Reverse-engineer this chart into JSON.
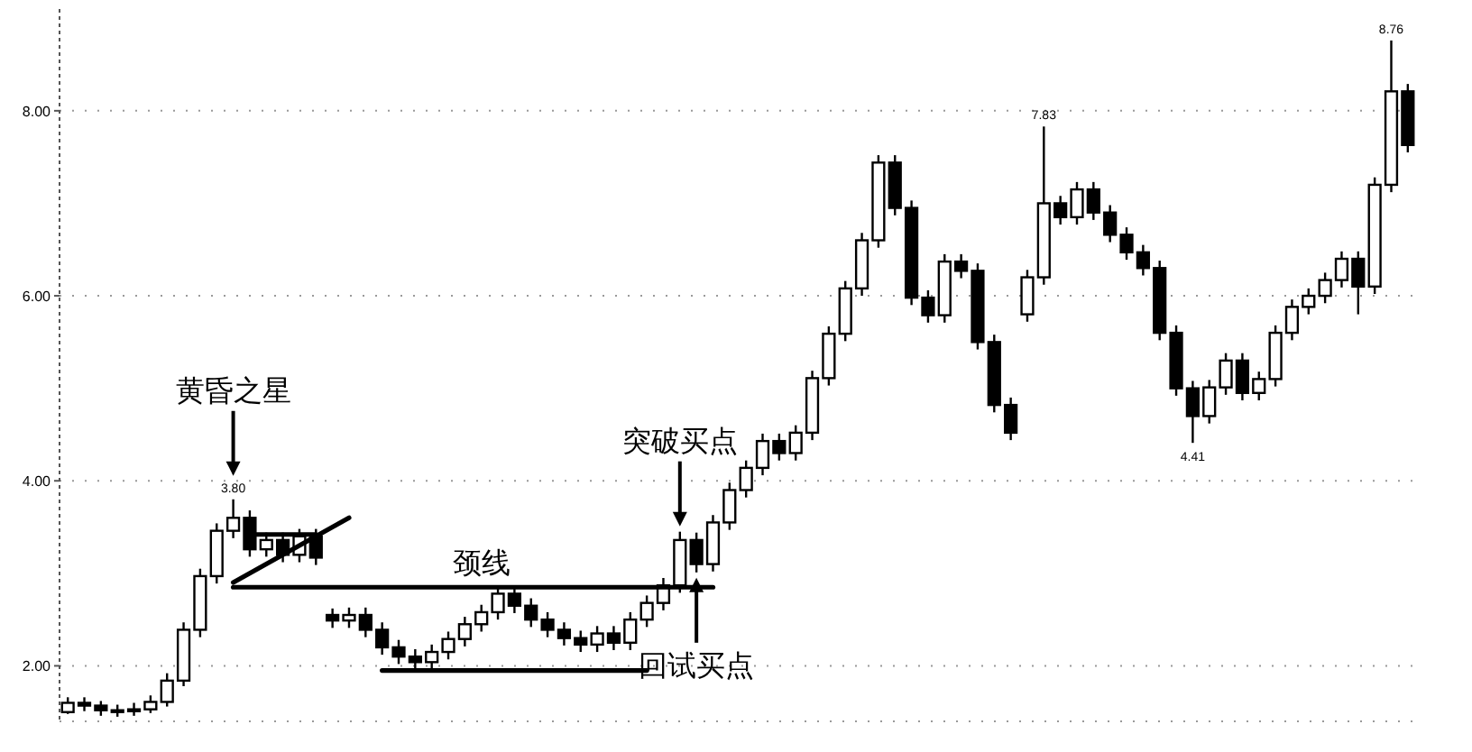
{
  "chart_data": {
    "type": "candlestick",
    "categories": [
      null,
      null,
      null,
      null,
      null,
      null,
      null,
      null,
      null,
      null,
      null,
      null,
      null,
      null,
      null,
      null,
      null,
      null,
      null,
      null,
      null,
      null,
      null,
      null,
      null,
      null,
      null,
      null,
      null,
      null,
      null,
      null,
      null,
      null,
      null,
      null,
      null,
      null,
      null,
      null,
      null,
      null,
      null,
      null,
      null,
      null,
      null,
      null,
      null,
      null,
      null,
      null,
      null,
      null,
      null,
      null,
      null,
      null,
      null,
      null,
      null,
      null,
      null,
      null,
      null,
      null,
      null,
      null,
      null,
      null,
      null,
      null,
      null,
      null,
      null,
      null,
      null,
      null,
      null,
      null,
      null,
      null
    ],
    "ohlc": [
      [
        1.5,
        1.66,
        1.48,
        1.6
      ],
      [
        1.6,
        1.66,
        1.51,
        1.57
      ],
      [
        1.57,
        1.62,
        1.46,
        1.52
      ],
      [
        1.52,
        1.58,
        1.45,
        1.51
      ],
      [
        1.51,
        1.6,
        1.46,
        1.53
      ],
      [
        1.53,
        1.68,
        1.49,
        1.61
      ],
      [
        1.61,
        1.92,
        1.56,
        1.84
      ],
      [
        1.84,
        2.47,
        1.78,
        2.39
      ],
      [
        2.39,
        3.05,
        2.31,
        2.97
      ],
      [
        2.97,
        3.54,
        2.89,
        3.46
      ],
      [
        3.46,
        3.8,
        3.38,
        3.6
      ],
      [
        3.6,
        3.68,
        3.18,
        3.26
      ],
      [
        3.26,
        3.44,
        3.18,
        3.36
      ],
      [
        3.36,
        3.44,
        3.12,
        3.2
      ],
      [
        3.2,
        3.48,
        3.12,
        3.4
      ],
      [
        3.4,
        3.48,
        3.09,
        3.17
      ],
      [
        2.55,
        2.62,
        2.41,
        2.49
      ],
      [
        2.49,
        2.63,
        2.41,
        2.55
      ],
      [
        2.55,
        2.63,
        2.31,
        2.39
      ],
      [
        2.39,
        2.47,
        2.12,
        2.2
      ],
      [
        2.2,
        2.28,
        2.02,
        2.1
      ],
      [
        2.1,
        2.18,
        1.96,
        2.04
      ],
      [
        2.04,
        2.23,
        1.96,
        2.15
      ],
      [
        2.15,
        2.37,
        2.07,
        2.29
      ],
      [
        2.29,
        2.53,
        2.21,
        2.45
      ],
      [
        2.45,
        2.66,
        2.37,
        2.58
      ],
      [
        2.58,
        2.86,
        2.5,
        2.78
      ],
      [
        2.78,
        2.86,
        2.57,
        2.65
      ],
      [
        2.65,
        2.73,
        2.42,
        2.5
      ],
      [
        2.5,
        2.58,
        2.31,
        2.39
      ],
      [
        2.39,
        2.47,
        2.22,
        2.3
      ],
      [
        2.3,
        2.38,
        2.15,
        2.23
      ],
      [
        2.23,
        2.43,
        2.15,
        2.35
      ],
      [
        2.35,
        2.43,
        2.17,
        2.25
      ],
      [
        2.25,
        2.58,
        2.17,
        2.5
      ],
      [
        2.5,
        2.76,
        2.42,
        2.68
      ],
      [
        2.68,
        2.95,
        2.6,
        2.87
      ],
      [
        2.87,
        3.45,
        2.79,
        3.36
      ],
      [
        3.36,
        3.44,
        3.01,
        3.1
      ],
      [
        3.1,
        3.63,
        3.02,
        3.55
      ],
      [
        3.55,
        3.98,
        3.47,
        3.9
      ],
      [
        3.9,
        4.22,
        3.82,
        4.14
      ],
      [
        4.14,
        4.51,
        4.06,
        4.43
      ],
      [
        4.43,
        4.51,
        4.22,
        4.3
      ],
      [
        4.3,
        4.6,
        4.22,
        4.52
      ],
      [
        4.52,
        5.19,
        4.44,
        5.11
      ],
      [
        5.11,
        5.67,
        5.03,
        5.59
      ],
      [
        5.59,
        6.16,
        5.51,
        6.08
      ],
      [
        6.08,
        6.68,
        6.0,
        6.6
      ],
      [
        6.6,
        7.52,
        6.52,
        7.44
      ],
      [
        7.44,
        7.52,
        6.87,
        6.95
      ],
      [
        6.95,
        7.03,
        5.9,
        5.98
      ],
      [
        5.98,
        6.06,
        5.71,
        5.79
      ],
      [
        5.79,
        6.45,
        5.71,
        6.37
      ],
      [
        6.37,
        6.45,
        6.19,
        6.27
      ],
      [
        6.27,
        6.35,
        5.42,
        5.5
      ],
      [
        5.5,
        5.58,
        4.74,
        4.82
      ],
      [
        4.82,
        4.9,
        4.44,
        4.52
      ],
      [
        5.8,
        6.28,
        5.72,
        6.2
      ],
      [
        6.2,
        7.83,
        6.12,
        7.0
      ],
      [
        7.0,
        7.08,
        6.77,
        6.85
      ],
      [
        6.85,
        7.23,
        6.77,
        7.15
      ],
      [
        7.15,
        7.23,
        6.82,
        6.9
      ],
      [
        6.9,
        6.98,
        6.58,
        6.66
      ],
      [
        6.66,
        6.74,
        6.39,
        6.47
      ],
      [
        6.47,
        6.55,
        6.22,
        6.3
      ],
      [
        6.3,
        6.38,
        5.52,
        5.6
      ],
      [
        5.6,
        5.68,
        4.92,
        5.0
      ],
      [
        5.0,
        5.08,
        4.41,
        4.7
      ],
      [
        4.7,
        5.09,
        4.62,
        5.01
      ],
      [
        5.01,
        5.38,
        4.93,
        5.3
      ],
      [
        5.3,
        5.38,
        4.87,
        4.95
      ],
      [
        4.95,
        5.18,
        4.87,
        5.1
      ],
      [
        5.1,
        5.68,
        5.02,
        5.6
      ],
      [
        5.6,
        5.96,
        5.52,
        5.88
      ],
      [
        5.88,
        6.08,
        5.8,
        6.0
      ],
      [
        6.0,
        6.25,
        5.92,
        6.17
      ],
      [
        6.17,
        6.48,
        6.09,
        6.4
      ],
      [
        6.4,
        6.48,
        5.8,
        6.1
      ],
      [
        6.1,
        7.28,
        6.02,
        7.2
      ],
      [
        7.2,
        8.76,
        7.12,
        8.21
      ],
      [
        8.21,
        8.29,
        7.55,
        7.63
      ]
    ],
    "color": "#000000",
    "series": [
      {
        "type": "line",
        "color": "#000000",
        "values": [
          null,
          null,
          null,
          null,
          null,
          null,
          null,
          null,
          null,
          null,
          2.85,
          2.85,
          2.85,
          2.85,
          2.85,
          2.85,
          2.85,
          2.85,
          2.85,
          2.85,
          2.85,
          2.85,
          2.85,
          2.85,
          2.85,
          2.85,
          2.85,
          2.85,
          2.85,
          2.85,
          2.85,
          2.85,
          2.85,
          2.85,
          2.85,
          2.85,
          2.85,
          2.85,
          2.85,
          2.85,
          null,
          null,
          null,
          null,
          null,
          null,
          null,
          null,
          null,
          null,
          null,
          null,
          null,
          null,
          null,
          null,
          null,
          null,
          null,
          null,
          null,
          null,
          null,
          null,
          null,
          null,
          null,
          null,
          null,
          null,
          null,
          null,
          null,
          null,
          null,
          null,
          null,
          null,
          null,
          null,
          null,
          null
        ]
      },
      {
        "type": "line",
        "color": "#000000",
        "values": [
          null,
          null,
          null,
          null,
          null,
          null,
          null,
          null,
          null,
          null,
          null,
          3.42,
          3.42,
          3.42,
          3.42,
          3.42,
          null,
          null,
          null,
          null,
          null,
          null,
          null,
          null,
          null,
          null,
          null,
          null,
          null,
          null,
          null,
          null,
          null,
          null,
          null,
          null,
          null,
          null,
          null,
          null,
          null,
          null,
          null,
          null,
          null,
          null,
          null,
          null,
          null,
          null,
          null,
          null,
          null,
          null,
          null,
          null,
          null,
          null,
          null,
          null,
          null,
          null,
          null,
          null,
          null,
          null,
          null,
          null,
          null,
          null,
          null,
          null,
          null,
          null,
          null,
          null,
          null,
          null,
          null,
          null,
          null,
          null
        ]
      },
      {
        "type": "line",
        "color": "#000000",
        "values": [
          null,
          null,
          null,
          null,
          null,
          null,
          null,
          null,
          null,
          null,
          2.9,
          3.0,
          3.1,
          3.2,
          3.3,
          3.4,
          3.5,
          3.6,
          null,
          null,
          null,
          null,
          null,
          null,
          null,
          null,
          null,
          null,
          null,
          null,
          null,
          null,
          null,
          null,
          null,
          null,
          null,
          null,
          null,
          null,
          null,
          null,
          null,
          null,
          null,
          null,
          null,
          null,
          null,
          null,
          null,
          null,
          null,
          null,
          null,
          null,
          null,
          null,
          null,
          null,
          null,
          null,
          null,
          null,
          null,
          null,
          null,
          null,
          null,
          null,
          null,
          null,
          null,
          null,
          null,
          null,
          null,
          null,
          null,
          null,
          null,
          null
        ]
      },
      {
        "type": "line",
        "color": "#000000",
        "values": [
          null,
          null,
          null,
          null,
          null,
          null,
          null,
          null,
          null,
          null,
          null,
          null,
          null,
          null,
          null,
          null,
          null,
          null,
          null,
          1.95,
          1.95,
          1.95,
          1.95,
          1.95,
          1.95,
          1.95,
          1.95,
          1.95,
          1.95,
          1.95,
          1.95,
          1.95,
          1.95,
          1.95,
          1.95,
          1.95,
          null,
          null,
          null,
          null,
          null,
          null,
          null,
          null,
          null,
          null,
          null,
          null,
          null,
          null,
          null,
          null,
          null,
          null,
          null,
          null,
          null,
          null,
          null,
          null,
          null,
          null,
          null,
          null,
          null,
          null,
          null,
          null,
          null,
          null,
          null,
          null,
          null,
          null,
          null,
          null,
          null,
          null,
          null,
          null,
          null,
          null
        ]
      }
    ],
    "ylim": [
      1.4,
      9.1
    ],
    "yticks": [
      {
        "value": 2,
        "label": "2.00"
      },
      {
        "value": 4,
        "label": "4.00"
      },
      {
        "value": 6,
        "label": "6.00"
      },
      {
        "value": 8,
        "label": "8.00"
      }
    ],
    "grid": "y",
    "annotations": [
      {
        "text": "3.80",
        "y": 3.8
      },
      "黄昏之星",
      {
        "text": "7.83",
        "y": 7.83
      },
      {
        "text": "4.41",
        "y": 4.41
      },
      {
        "text": "8.76",
        "y": 8.76
      },
      {
        "text": "颈线",
        "y": 2.85
      },
      {
        "text": "突破买点",
        "y": 3.45
      },
      {
        "text": "回试买点",
        "y": 3.01
      }
    ]
  }
}
